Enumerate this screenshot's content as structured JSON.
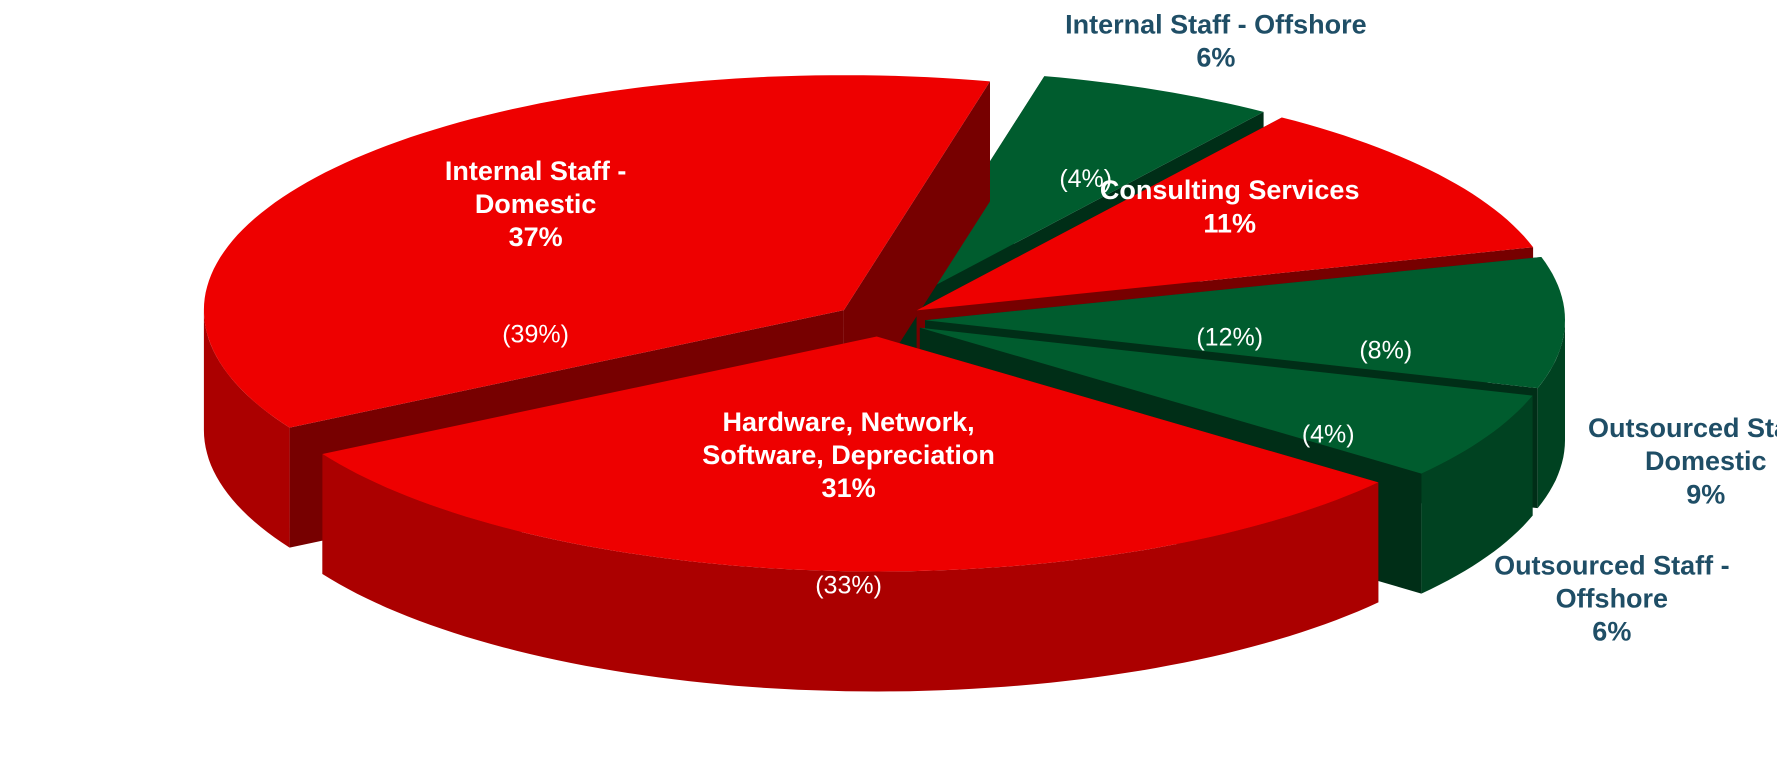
{
  "chart_data": {
    "type": "pie3d",
    "categories": [
      "Internal Staff - Domestic",
      "Internal Staff - Offshore",
      "Consulting Services",
      "Outsourced Staff - Domestic",
      "Outsourced Staff - Offshore",
      "Hardware, Network, Software, Depreciation"
    ],
    "values": [
      37,
      6,
      11,
      9,
      6,
      31
    ],
    "value_labels": [
      "37%",
      "6%",
      "11%",
      "9%",
      "6%",
      "31%"
    ],
    "secondary_values": [
      39,
      4,
      12,
      8,
      4,
      33
    ],
    "secondary_value_labels": [
      "(39%)",
      "(4%)",
      "(12%)",
      "(8%)",
      "(4%)",
      "(33%)"
    ],
    "colors": [
      "#ee0000",
      "#005c2e",
      "#ee0000",
      "#005c2e",
      "#005c2e",
      "#ee0000"
    ]
  }
}
